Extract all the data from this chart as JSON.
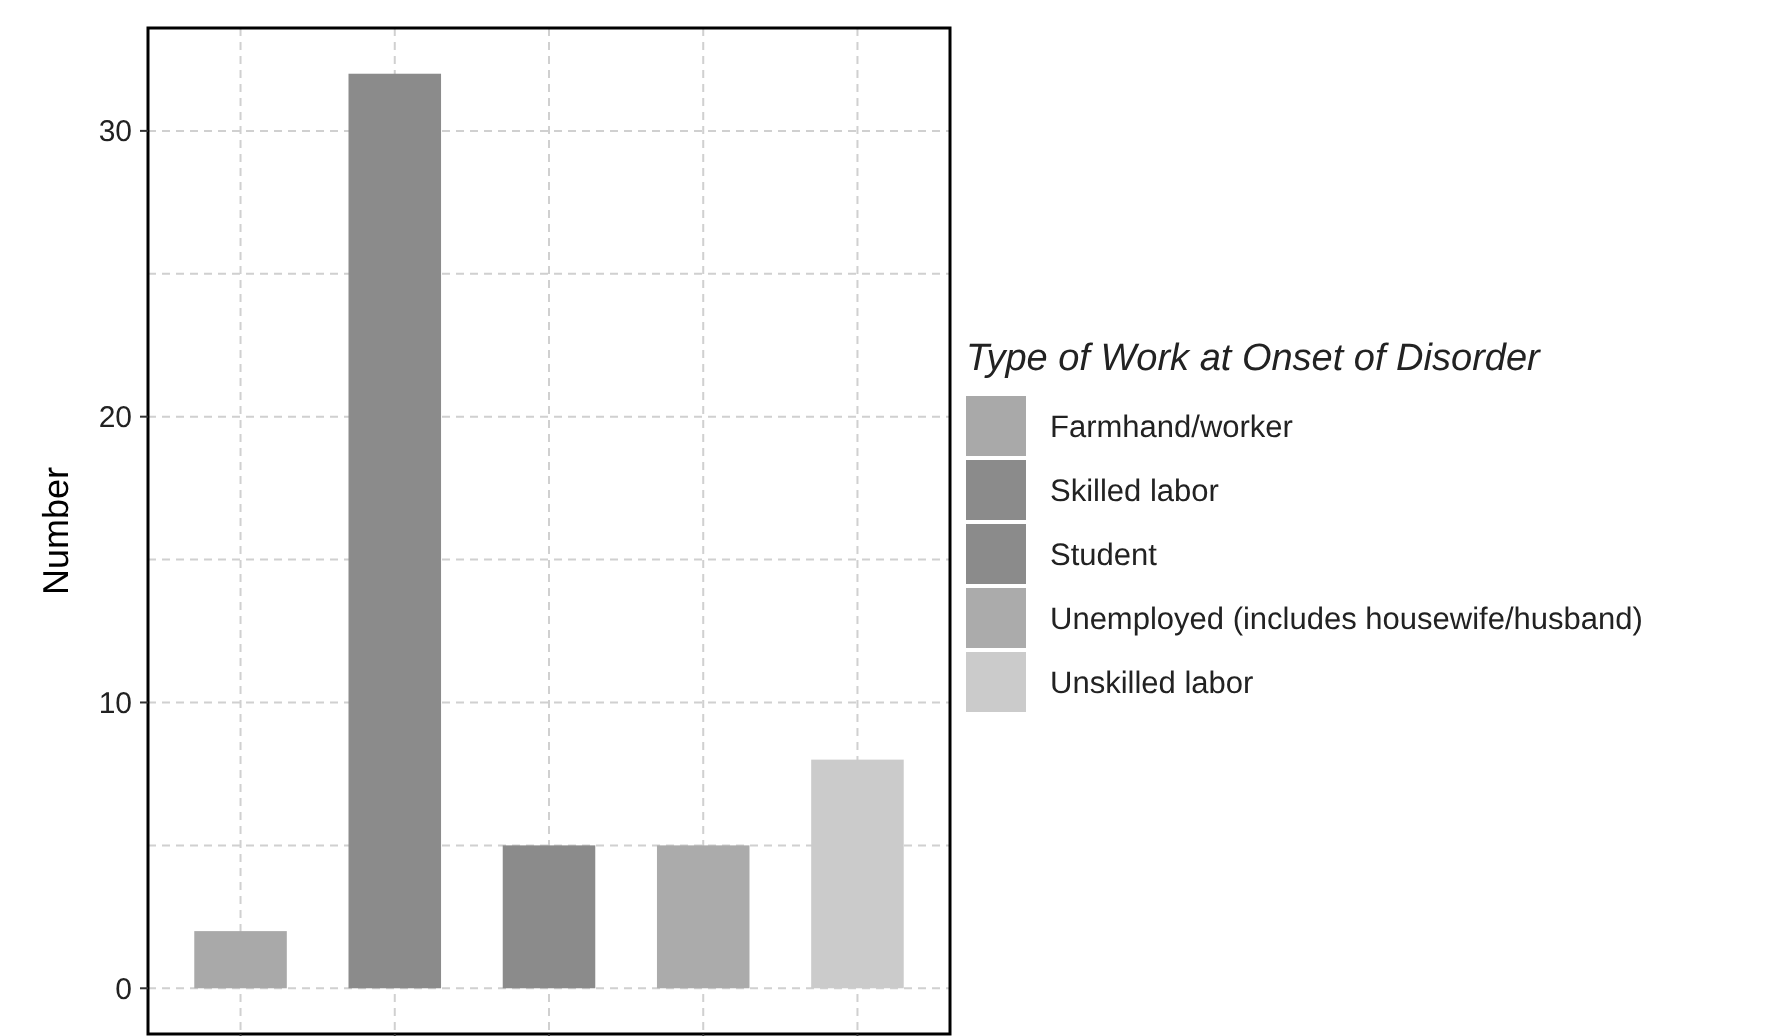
{
  "chart_data": {
    "type": "bar",
    "ylabel": "Number",
    "legend_title": "Type of Work at Onset of Disorder",
    "categories": [
      null,
      null,
      null,
      null,
      null
    ],
    "series": [
      {
        "name": "Farmhand/worker",
        "color": "#a9a9a9",
        "values": [
          2,
          null,
          null,
          null,
          null
        ]
      },
      {
        "name": "Skilled labor",
        "color": "#8b8b8b",
        "values": [
          null,
          32,
          null,
          null,
          null
        ]
      },
      {
        "name": "Student",
        "color": "#8b8b8b",
        "values": [
          null,
          null,
          5,
          null,
          null
        ]
      },
      {
        "name": "Unemployed (includes housewife/husband)",
        "color": "#ababab",
        "values": [
          null,
          null,
          null,
          5,
          null
        ]
      },
      {
        "name": "Unskilled labor",
        "color": "#cbcbcb",
        "values": [
          null,
          null,
          null,
          null,
          8
        ]
      }
    ],
    "ylim": [
      -1.6,
      33.6
    ],
    "yticks": [
      0,
      {
        "value": 5,
        "label": null
      },
      10,
      {
        "value": 15,
        "label": null
      },
      20,
      {
        "value": 25,
        "label": null
      },
      30
    ],
    "grid": true,
    "legend": "right"
  }
}
